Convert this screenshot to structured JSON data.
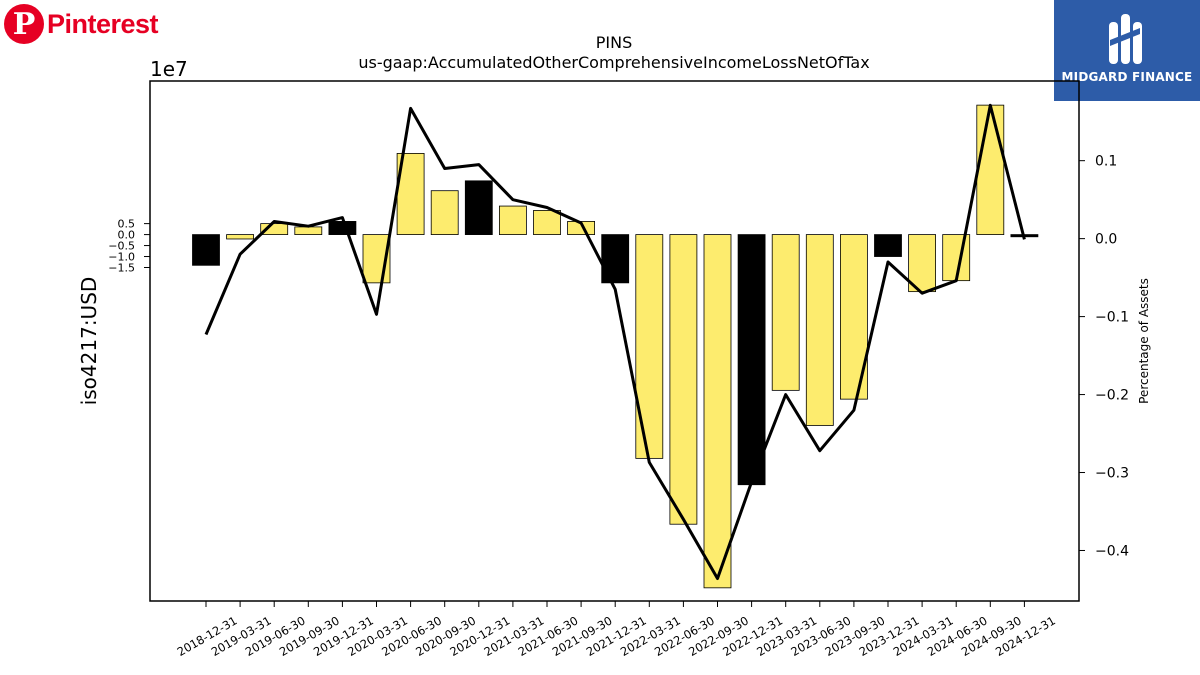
{
  "brand": {
    "name": "Pinterest",
    "logo_letter": "P",
    "color": "#e60023"
  },
  "watermark": {
    "text": "MIDGARD FINANCE",
    "bg": "#2d5ca8"
  },
  "chart_data": {
    "type": "bar+line",
    "title": "PINS",
    "subtitle": "us-gaap:AccumulatedOtherComprehensiveIncomeLossNetOfTax",
    "ylabel": "iso4217:USD",
    "y2label": "Percentage of Assets",
    "y_offset_label": "1e7",
    "ylim": [
      -16.7,
      7.0
    ],
    "y2lim": [
      -0.4648,
      0.2022
    ],
    "yticks": [
      0.5,
      0.0,
      -0.5,
      -1.0,
      -1.5
    ],
    "ytick_labels": [
      "0.5",
      "0.0",
      "−0.5",
      "−1.0",
      "−1.5"
    ],
    "y2ticks": [
      0.1,
      0.0,
      -0.1,
      -0.2,
      -0.3,
      -0.4
    ],
    "y2tick_labels": [
      "0.1",
      "0.0",
      "−0.1",
      "−0.2",
      "−0.3",
      "−0.4"
    ],
    "categories": [
      "2018-12-31",
      "2019-03-31",
      "2019-06-30",
      "2019-09-30",
      "2019-12-31",
      "2020-03-31",
      "2020-06-30",
      "2020-09-30",
      "2020-12-31",
      "2021-03-31",
      "2021-06-30",
      "2021-09-30",
      "2021-12-31",
      "2022-03-31",
      "2022-06-30",
      "2022-09-30",
      "2022-12-31",
      "2023-03-31",
      "2023-06-30",
      "2023-09-30",
      "2023-12-31",
      "2024-03-31",
      "2024-06-30",
      "2024-09-30",
      "2024-12-31"
    ],
    "bar_values": [
      -1.4,
      -0.2,
      0.5,
      0.35,
      0.6,
      -2.2,
      3.7,
      2.0,
      2.45,
      1.3,
      1.1,
      0.6,
      -2.2,
      -10.2,
      -13.2,
      -16.1,
      -11.4,
      -7.1,
      -8.7,
      -7.5,
      -1.0,
      -2.6,
      -2.1,
      5.9,
      -0.1
    ],
    "bar_values_unit_note": "×1e7",
    "bar_colors": [
      "#000000",
      "#fdec6e",
      "#fdec6e",
      "#fdec6e",
      "#000000",
      "#fdec6e",
      "#fdec6e",
      "#fdec6e",
      "#000000",
      "#fdec6e",
      "#fdec6e",
      "#fdec6e",
      "#000000",
      "#fdec6e",
      "#fdec6e",
      "#fdec6e",
      "#000000",
      "#fdec6e",
      "#fdec6e",
      "#fdec6e",
      "#000000",
      "#fdec6e",
      "#fdec6e",
      "#fdec6e",
      "#000000"
    ],
    "line_values": [
      -0.123,
      -0.02,
      0.022,
      0.016,
      0.027,
      -0.097,
      0.167,
      0.09,
      0.095,
      0.05,
      0.04,
      0.02,
      -0.065,
      -0.287,
      -0.36,
      -0.436,
      -0.312,
      -0.2,
      -0.272,
      -0.22,
      -0.03,
      -0.07,
      -0.054,
      0.171,
      -0.001
    ],
    "colors": {
      "yellow": "#fdec6e",
      "black": "#000000",
      "line": "#000000"
    },
    "grid": false
  }
}
